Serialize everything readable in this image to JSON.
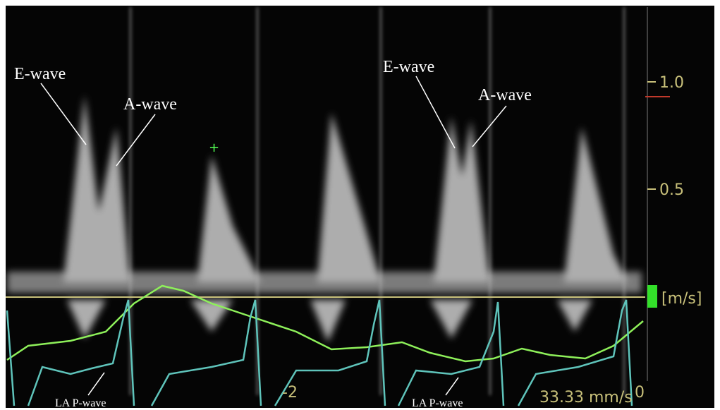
{
  "annotations": {
    "e_wave_1": "E-wave",
    "a_wave_1": "A-wave",
    "e_wave_2": "E-wave",
    "a_wave_2": "A-wave",
    "la_p_wave_1": "LA P-wave",
    "la_p_wave_2": "LA P-wave"
  },
  "velocity_scale": {
    "ticks": [
      "1.0",
      "0.5"
    ],
    "unit": "[m/s]"
  },
  "time_axis": {
    "ticks": [
      "-2",
      "0"
    ]
  },
  "sweep_speed": "33.33 mm/s"
}
